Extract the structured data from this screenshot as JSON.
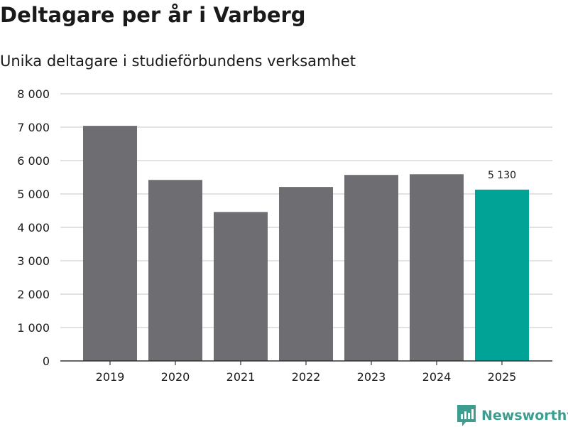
{
  "chart_data": {
    "type": "bar",
    "title": "Deltagare per år i Varberg",
    "subtitle": "Unika deltagare i studieförbundens verksamhet",
    "categories": [
      "2019",
      "2020",
      "2021",
      "2022",
      "2023",
      "2024",
      "2025"
    ],
    "values": [
      7040,
      5420,
      4460,
      5210,
      5570,
      5590,
      5130
    ],
    "ylim": [
      0,
      8000
    ],
    "yticks": [
      0,
      1000,
      2000,
      3000,
      4000,
      5000,
      6000,
      7000,
      8000
    ],
    "ytick_labels": [
      "0",
      "1 000",
      "2 000",
      "3 000",
      "4 000",
      "5 000",
      "6 000",
      "7 000",
      "8 000"
    ],
    "highlight_index": 6,
    "data_labels": [
      {
        "index": 6,
        "text": "5 130"
      }
    ],
    "xlabel": "",
    "ylabel": "",
    "grid": true,
    "colors": {
      "bar": "#6e6d72",
      "highlight": "#00a396",
      "grid": "#d9d9d9",
      "axis": "#333333"
    }
  },
  "brand": {
    "name": "Newsworthy",
    "logo_color": "#3d9e8f"
  }
}
